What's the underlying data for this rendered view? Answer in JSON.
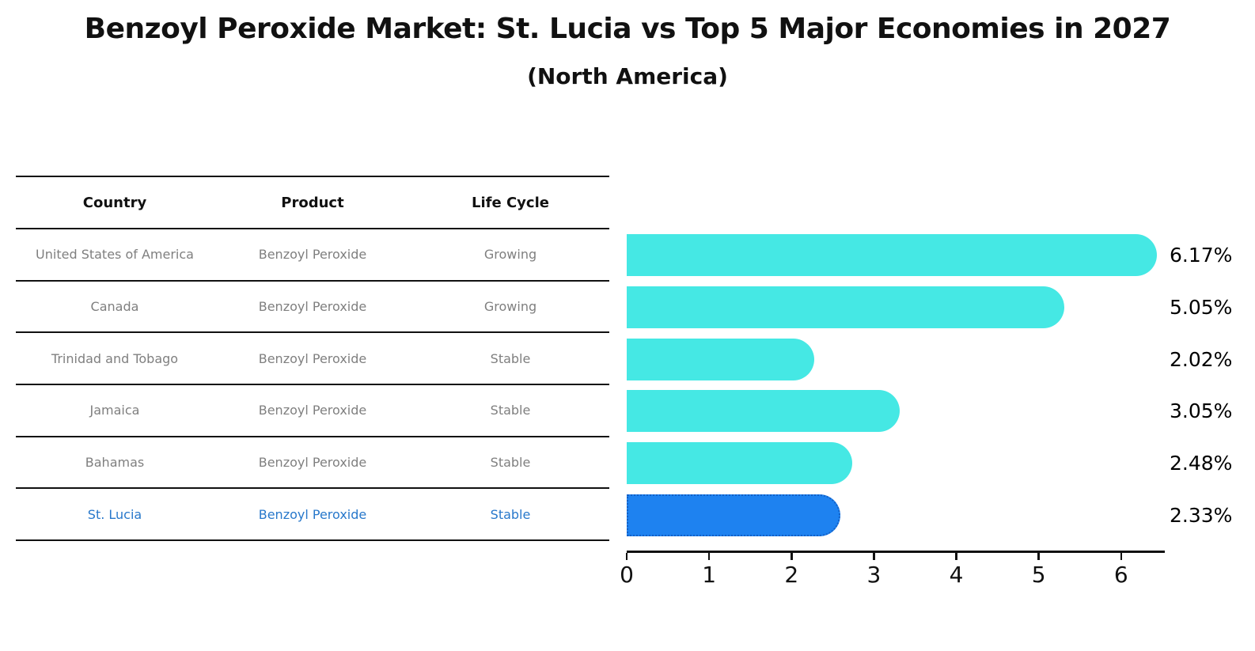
{
  "title": "Benzoyl Peroxide Market: St. Lucia vs Top 5 Major Economies in 2027",
  "subtitle": "(North America)",
  "table": {
    "headers": [
      "Country",
      "Product",
      "Life Cycle"
    ],
    "rows": [
      {
        "country": "United States of America",
        "product": "Benzoyl Peroxide",
        "life_cycle": "Growing",
        "highlight": false
      },
      {
        "country": "Canada",
        "product": "Benzoyl Peroxide",
        "life_cycle": "Growing",
        "highlight": false
      },
      {
        "country": "Trinidad and Tobago",
        "product": "Benzoyl Peroxide",
        "life_cycle": "Stable",
        "highlight": false
      },
      {
        "country": "Jamaica",
        "product": "Benzoyl Peroxide",
        "life_cycle": "Stable",
        "highlight": false
      },
      {
        "country": "Bahamas",
        "product": "Benzoyl Peroxide",
        "life_cycle": "Stable",
        "highlight": false
      },
      {
        "country": "St. Lucia",
        "product": "Benzoyl Peroxide",
        "life_cycle": "Stable",
        "highlight": true
      }
    ]
  },
  "chart_data": {
    "type": "bar",
    "orientation": "horizontal",
    "title": "Benzoyl Peroxide Market: St. Lucia vs Top 5 Major Economies in 2027",
    "subtitle": "(North America)",
    "categories": [
      "United States of America",
      "Canada",
      "Trinidad and Tobago",
      "Jamaica",
      "Bahamas",
      "St. Lucia"
    ],
    "values": [
      6.17,
      5.05,
      2.02,
      3.05,
      2.48,
      2.33
    ],
    "bar_labels": [
      "6.17%",
      "5.05%",
      "2.02%",
      "3.05%",
      "2.48%",
      "2.33%"
    ],
    "units": "percent",
    "xlabel": "",
    "ylabel": "",
    "xlim": [
      0,
      6.53
    ],
    "xticks": [
      0,
      1,
      2,
      3,
      4,
      5,
      6
    ],
    "xtick_labels": [
      "0",
      "1",
      "2",
      "3",
      "4",
      "5",
      "6"
    ],
    "grid": false,
    "legend": false,
    "bar_color": "#45E8E4",
    "highlight_index": 5,
    "highlight_fill": "#1E82F0",
    "highlight_border_color": "#1360C6",
    "highlight_border_style": "dotted"
  },
  "colors": {
    "background": "#FFFFFF",
    "title_text": "#111111",
    "table_header_text": "#111111",
    "table_row_text": "#7F7F7F",
    "highlight_row_text": "#2878CB",
    "axis_text": "#111111",
    "value_label_text": "#000000",
    "rule_color": "#111111"
  }
}
